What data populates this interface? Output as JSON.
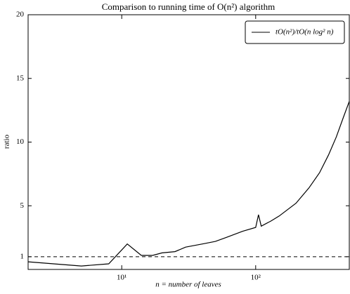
{
  "chart_data": {
    "type": "line",
    "title": "Comparison to running time of O(n²) algorithm",
    "xlabel": "n = number of leaves",
    "ylabel": "ratio",
    "xscale": "log",
    "xlim": [
      2,
      500
    ],
    "ylim": [
      0,
      20
    ],
    "xticks": [
      {
        "value": 10,
        "label": "10¹"
      },
      {
        "value": 100,
        "label": "10²"
      }
    ],
    "yticks": [
      1,
      5,
      10,
      15,
      20
    ],
    "reference_line": 1,
    "legend": "upper right",
    "series": [
      {
        "name": "tO(n²)/tO(n log² n)",
        "color": "#000000",
        "x": [
          2,
          5,
          8,
          11,
          14,
          17,
          20,
          25,
          30,
          40,
          50,
          60,
          80,
          100,
          105,
          110,
          130,
          150,
          200,
          250,
          300,
          350,
          400,
          450,
          500
        ],
        "values": [
          0.6,
          0.27,
          0.44,
          2.0,
          1.1,
          1.1,
          1.3,
          1.4,
          1.75,
          2.0,
          2.2,
          2.5,
          3.0,
          3.3,
          4.3,
          3.4,
          3.8,
          4.2,
          5.2,
          6.4,
          7.6,
          9.0,
          10.4,
          11.9,
          13.2
        ]
      }
    ]
  }
}
